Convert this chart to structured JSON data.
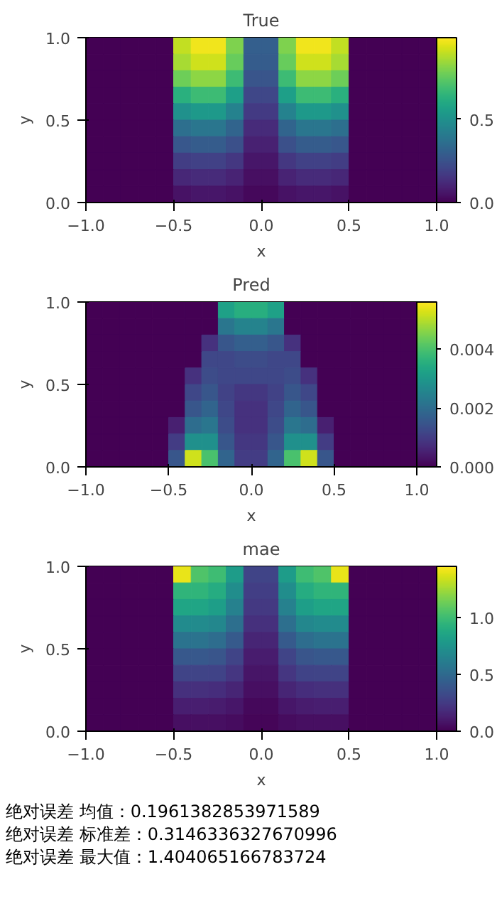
{
  "chart_data": [
    {
      "type": "heatmap",
      "title": "True",
      "xlabel": "x",
      "ylabel": "y",
      "x": [
        -0.95,
        -0.85,
        -0.75,
        -0.65,
        -0.55,
        -0.45,
        -0.35,
        -0.25,
        -0.15,
        -0.05,
        0.05,
        0.15,
        0.25,
        0.35,
        0.45,
        0.55,
        0.65,
        0.75,
        0.85,
        0.95
      ],
      "y": [
        0.95,
        0.85,
        0.75,
        0.65,
        0.55,
        0.45,
        0.35,
        0.25,
        0.15,
        0.05
      ],
      "xlim": [
        -1,
        1
      ],
      "xticks": [
        {
          "value": -1,
          "label": "−1.0"
        },
        {
          "value": -0.5,
          "label": "−0.5"
        },
        {
          "value": 0,
          "label": "0.0"
        },
        {
          "value": 0.5,
          "label": "0.5"
        },
        {
          "value": 1,
          "label": "1.0"
        }
      ],
      "ylim": [
        0,
        1
      ],
      "yticks": [
        {
          "value": 0,
          "label": "0.0"
        },
        {
          "value": 0.5,
          "label": "0.5"
        },
        {
          "value": 1,
          "label": "1.0"
        }
      ],
      "clim": [
        0,
        0.99
      ],
      "cticks": [
        {
          "value": 0,
          "label": "0.0"
        },
        {
          "value": 0.5,
          "label": "0.5"
        }
      ],
      "cells": [
        [
          0,
          0,
          0,
          0,
          0,
          0.9,
          0.97,
          0.97,
          0.8,
          0.3,
          0.3,
          0.8,
          0.97,
          0.97,
          0.9,
          0,
          0,
          0,
          0,
          0
        ],
        [
          0,
          0,
          0,
          0,
          0,
          0.86,
          0.92,
          0.92,
          0.76,
          0.29,
          0.29,
          0.76,
          0.92,
          0.92,
          0.86,
          0,
          0,
          0,
          0,
          0
        ],
        [
          0,
          0,
          0,
          0,
          0,
          0.77,
          0.82,
          0.82,
          0.68,
          0.26,
          0.26,
          0.68,
          0.82,
          0.82,
          0.77,
          0,
          0,
          0,
          0,
          0
        ],
        [
          0,
          0,
          0,
          0,
          0,
          0.63,
          0.68,
          0.68,
          0.56,
          0.21,
          0.21,
          0.56,
          0.68,
          0.68,
          0.63,
          0,
          0,
          0,
          0,
          0
        ],
        [
          0,
          0,
          0,
          0,
          0,
          0.5,
          0.53,
          0.53,
          0.44,
          0.17,
          0.17,
          0.44,
          0.53,
          0.53,
          0.5,
          0,
          0,
          0,
          0,
          0
        ],
        [
          0,
          0,
          0,
          0,
          0,
          0.36,
          0.39,
          0.39,
          0.32,
          0.12,
          0.12,
          0.32,
          0.39,
          0.39,
          0.36,
          0,
          0,
          0,
          0,
          0
        ],
        [
          0,
          0,
          0,
          0,
          0,
          0.27,
          0.29,
          0.29,
          0.24,
          0.09,
          0.09,
          0.24,
          0.29,
          0.29,
          0.27,
          0,
          0,
          0,
          0,
          0
        ],
        [
          0,
          0,
          0,
          0,
          0,
          0.18,
          0.19,
          0.19,
          0.16,
          0.06,
          0.06,
          0.16,
          0.19,
          0.19,
          0.18,
          0,
          0,
          0,
          0,
          0
        ],
        [
          0,
          0,
          0,
          0,
          0,
          0.11,
          0.12,
          0.12,
          0.1,
          0.04,
          0.04,
          0.1,
          0.12,
          0.12,
          0.11,
          0,
          0,
          0,
          0,
          0
        ],
        [
          0,
          0,
          0,
          0,
          0,
          0.05,
          0.06,
          0.06,
          0.05,
          0.02,
          0.02,
          0.05,
          0.06,
          0.06,
          0.05,
          0,
          0,
          0,
          0,
          0
        ]
      ]
    },
    {
      "type": "heatmap",
      "title": "Pred",
      "xlabel": "x",
      "ylabel": "y",
      "x": [
        -0.95,
        -0.85,
        -0.75,
        -0.65,
        -0.55,
        -0.45,
        -0.35,
        -0.25,
        -0.15,
        -0.05,
        0.05,
        0.15,
        0.25,
        0.35,
        0.45,
        0.55,
        0.65,
        0.75,
        0.85,
        0.95
      ],
      "y": [
        0.95,
        0.85,
        0.75,
        0.65,
        0.55,
        0.45,
        0.35,
        0.25,
        0.15,
        0.05
      ],
      "xlim": [
        -1,
        1
      ],
      "xticks": [
        {
          "value": -1,
          "label": "−1.0"
        },
        {
          "value": -0.5,
          "label": "−0.5"
        },
        {
          "value": 0,
          "label": "0.0"
        },
        {
          "value": 0.5,
          "label": "0.5"
        },
        {
          "value": 1,
          "label": "1.0"
        }
      ],
      "ylim": [
        0,
        1
      ],
      "yticks": [
        {
          "value": 0,
          "label": "0.0"
        },
        {
          "value": 0.5,
          "label": "0.5"
        },
        {
          "value": 1,
          "label": "1.0"
        }
      ],
      "clim": [
        0,
        0.0056
      ],
      "cticks": [
        {
          "value": 0,
          "label": "0.000"
        },
        {
          "value": 0.002,
          "label": "0.002"
        },
        {
          "value": 0.004,
          "label": "0.004"
        }
      ],
      "cells": [
        [
          0,
          0,
          0,
          0,
          0,
          0,
          0,
          0,
          0.0032,
          0.0035,
          0.0035,
          0.0032,
          0,
          0,
          0,
          0,
          0,
          0,
          0,
          0
        ],
        [
          0,
          0,
          0,
          0,
          0,
          0,
          0,
          0,
          0.0022,
          0.0025,
          0.0025,
          0.0022,
          0,
          0,
          0,
          0,
          0,
          0,
          0,
          0
        ],
        [
          0,
          0,
          0,
          0,
          0,
          0,
          0,
          0.0008,
          0.0015,
          0.0017,
          0.0017,
          0.0015,
          0.0008,
          0,
          0,
          0,
          0,
          0,
          0,
          0
        ],
        [
          0,
          0,
          0,
          0,
          0,
          0,
          0,
          0.0012,
          0.0012,
          0.0013,
          0.0013,
          0.0012,
          0.0012,
          0,
          0,
          0,
          0,
          0,
          0,
          0
        ],
        [
          0,
          0,
          0,
          0,
          0,
          0,
          0.0008,
          0.0013,
          0.0012,
          0.0012,
          0.0012,
          0.0012,
          0.0013,
          0.0008,
          0,
          0,
          0,
          0,
          0,
          0
        ],
        [
          0,
          0,
          0,
          0,
          0,
          0,
          0.0012,
          0.0015,
          0.0011,
          0.0009,
          0.0009,
          0.0011,
          0.0015,
          0.0012,
          0,
          0,
          0,
          0,
          0,
          0
        ],
        [
          0,
          0,
          0,
          0,
          0,
          0,
          0.0015,
          0.0018,
          0.0012,
          0.0008,
          0.0008,
          0.0012,
          0.0018,
          0.0015,
          0,
          0,
          0,
          0,
          0,
          0
        ],
        [
          0,
          0,
          0,
          0,
          0,
          0.0005,
          0.002,
          0.0022,
          0.0013,
          0.0008,
          0.0008,
          0.0013,
          0.0022,
          0.002,
          0.0005,
          0,
          0,
          0,
          0,
          0
        ],
        [
          0,
          0,
          0,
          0,
          0,
          0.001,
          0.0028,
          0.0028,
          0.0015,
          0.0009,
          0.0009,
          0.0015,
          0.0028,
          0.0028,
          0.001,
          0,
          0,
          0,
          0,
          0
        ],
        [
          0,
          0,
          0,
          0,
          0,
          0.0015,
          0.0052,
          0.004,
          0.0018,
          0.001,
          0.001,
          0.0018,
          0.004,
          0.0052,
          0.0015,
          0,
          0,
          0,
          0,
          0
        ]
      ]
    },
    {
      "type": "heatmap",
      "title": "mae",
      "xlabel": "x",
      "ylabel": "y",
      "x": [
        -0.95,
        -0.85,
        -0.75,
        -0.65,
        -0.55,
        -0.45,
        -0.35,
        -0.25,
        -0.15,
        -0.05,
        0.05,
        0.15,
        0.25,
        0.35,
        0.45,
        0.55,
        0.65,
        0.75,
        0.85,
        0.95
      ],
      "y": [
        0.95,
        0.85,
        0.75,
        0.65,
        0.55,
        0.45,
        0.35,
        0.25,
        0.15,
        0.05
      ],
      "xlim": [
        -1,
        1
      ],
      "xticks": [
        {
          "value": -1,
          "label": "−1.0"
        },
        {
          "value": -0.5,
          "label": "−0.5"
        },
        {
          "value": 0,
          "label": "0.0"
        },
        {
          "value": 0.5,
          "label": "0.5"
        },
        {
          "value": 1,
          "label": "1.0"
        }
      ],
      "ylim": [
        0,
        1
      ],
      "yticks": [
        {
          "value": 0,
          "label": "0.0"
        },
        {
          "value": 0.5,
          "label": "0.5"
        },
        {
          "value": 1,
          "label": "1.0"
        }
      ],
      "clim": [
        0,
        1.45
      ],
      "cticks": [
        {
          "value": 0,
          "label": "0.0"
        },
        {
          "value": 0.5,
          "label": "0.5"
        },
        {
          "value": 1,
          "label": "1.0"
        }
      ],
      "cells": [
        [
          0,
          0,
          0,
          0,
          0,
          1.4,
          1.05,
          1.0,
          0.8,
          0.3,
          0.3,
          0.8,
          1.0,
          1.05,
          1.4,
          0,
          0,
          0,
          0,
          0
        ],
        [
          0,
          0,
          0,
          0,
          0,
          0.95,
          0.95,
          0.9,
          0.71,
          0.27,
          0.27,
          0.71,
          0.9,
          0.95,
          0.95,
          0,
          0,
          0,
          0,
          0
        ],
        [
          0,
          0,
          0,
          0,
          0,
          0.85,
          0.85,
          0.81,
          0.64,
          0.24,
          0.24,
          0.64,
          0.81,
          0.85,
          0.85,
          0,
          0,
          0,
          0,
          0
        ],
        [
          0,
          0,
          0,
          0,
          0,
          0.7,
          0.7,
          0.67,
          0.53,
          0.2,
          0.2,
          0.53,
          0.67,
          0.7,
          0.7,
          0,
          0,
          0,
          0,
          0
        ],
        [
          0,
          0,
          0,
          0,
          0,
          0.55,
          0.55,
          0.52,
          0.41,
          0.15,
          0.15,
          0.41,
          0.52,
          0.55,
          0.55,
          0,
          0,
          0,
          0,
          0
        ],
        [
          0,
          0,
          0,
          0,
          0,
          0.4,
          0.4,
          0.38,
          0.3,
          0.11,
          0.11,
          0.3,
          0.38,
          0.4,
          0.4,
          0,
          0,
          0,
          0,
          0
        ],
        [
          0,
          0,
          0,
          0,
          0,
          0.3,
          0.3,
          0.29,
          0.23,
          0.08,
          0.08,
          0.23,
          0.29,
          0.3,
          0.3,
          0,
          0,
          0,
          0,
          0
        ],
        [
          0,
          0,
          0,
          0,
          0,
          0.2,
          0.2,
          0.19,
          0.15,
          0.06,
          0.06,
          0.15,
          0.19,
          0.2,
          0.2,
          0,
          0,
          0,
          0,
          0
        ],
        [
          0,
          0,
          0,
          0,
          0,
          0.12,
          0.12,
          0.11,
          0.09,
          0.03,
          0.03,
          0.09,
          0.11,
          0.12,
          0.12,
          0,
          0,
          0,
          0,
          0
        ],
        [
          0,
          0,
          0,
          0,
          0,
          0.06,
          0.06,
          0.06,
          0.05,
          0.02,
          0.02,
          0.05,
          0.06,
          0.06,
          0.06,
          0,
          0,
          0,
          0,
          0
        ]
      ],
      "annotations": [
        "绝对误差 均值：0.1961382853971589",
        "绝对误差 标准差：0.3146336327670996",
        "绝对误差 最大值：1.404065166783724"
      ]
    }
  ]
}
